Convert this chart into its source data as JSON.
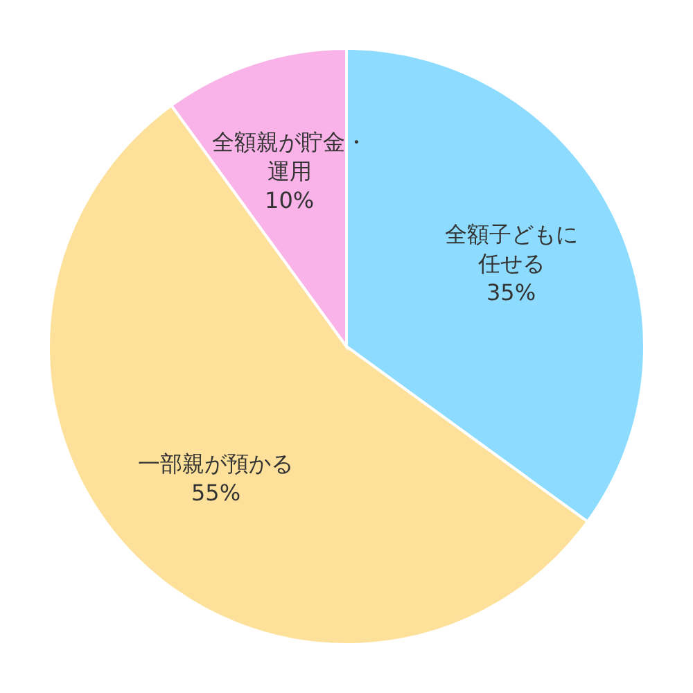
{
  "chart_data": {
    "type": "pie",
    "categories": [
      "全額子どもに任せる",
      "一部親が預かる",
      "全額親が貯金・運用"
    ],
    "values": [
      35,
      55,
      10
    ],
    "colors": [
      "#8ddcff",
      "#fde19a",
      "#f9b3e8"
    ],
    "value_labels": [
      "35%",
      "55%",
      "10%"
    ]
  }
}
